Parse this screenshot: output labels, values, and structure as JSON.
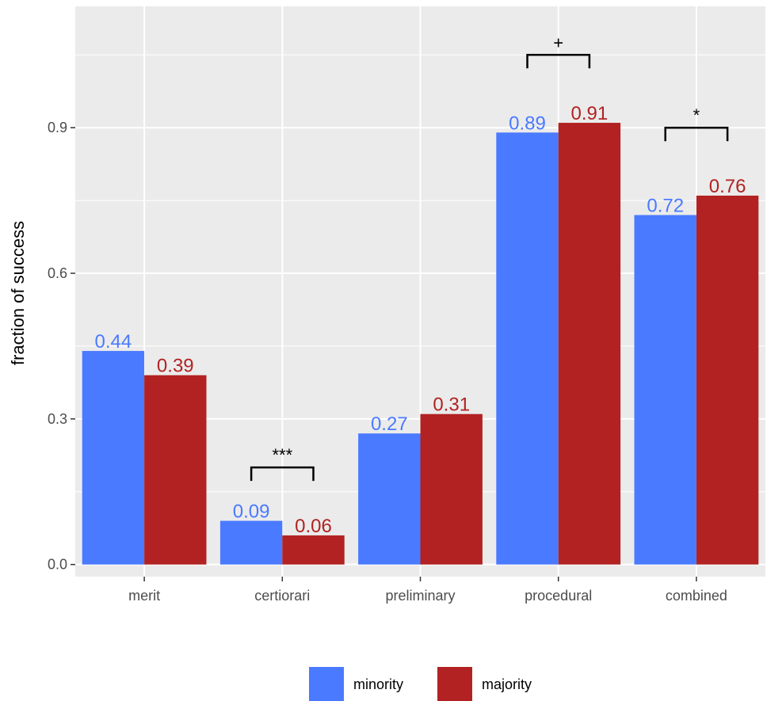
{
  "chart_data": {
    "type": "bar",
    "categories": [
      "merit",
      "certiorari",
      "preliminary",
      "procedural",
      "combined"
    ],
    "series": [
      {
        "name": "minority",
        "color": "#4a7aff",
        "values": [
          0.44,
          0.09,
          0.27,
          0.89,
          0.72
        ],
        "labels": [
          "0.44",
          "0.09",
          "0.27",
          "0.89",
          "0.72"
        ]
      },
      {
        "name": "majority",
        "color": "#b22222",
        "values": [
          0.39,
          0.06,
          0.31,
          0.91,
          0.76
        ],
        "labels": [
          "0.39",
          "0.06",
          "0.31",
          "0.91",
          "0.76"
        ]
      }
    ],
    "xlabel": "",
    "ylabel": "fraction of success",
    "ylim": [
      -0.025,
      1.15
    ],
    "yticks": [
      0.0,
      0.3,
      0.6,
      0.9
    ],
    "ytick_labels": [
      "0.0",
      "0.3",
      "0.6",
      "0.9"
    ],
    "significance": [
      {
        "category": "certiorari",
        "label": "***",
        "y": 0.2
      },
      {
        "category": "procedural",
        "label": "+",
        "y": 1.05
      },
      {
        "category": "combined",
        "label": "*",
        "y": 0.9
      }
    ],
    "grid": true,
    "legend_position": "bottom",
    "panel_background": "#ebebeb"
  }
}
